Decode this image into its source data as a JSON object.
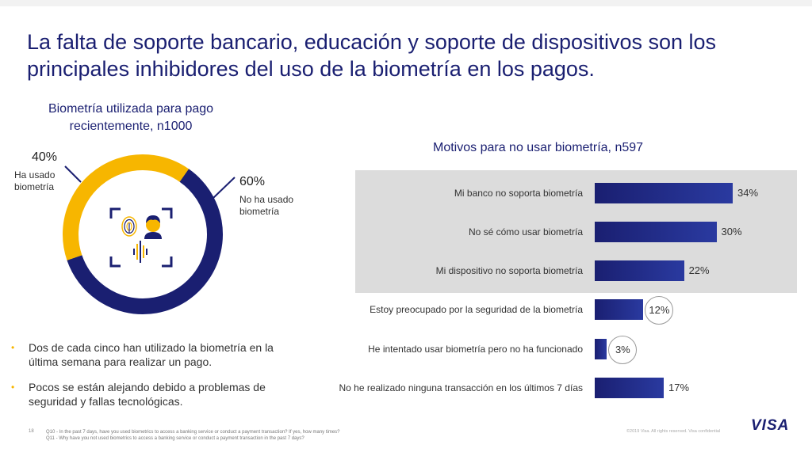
{
  "title": {
    "line1": "La falta de soporte bancario, educación y soporte de dispositivos son los",
    "line2": "principales inhibidores del uso de la biometría en los pagos."
  },
  "donut": {
    "title_line1": "Biometría utilizada para pago",
    "title_line2": "recientemente, n1000",
    "used_pct": "40%",
    "used_label_line1": "Ha usado",
    "used_label_line2": "biometría",
    "notused_pct": "60%",
    "notused_label_line1": "No ha usado",
    "notused_label_line2": "biometría",
    "icon": "biometric-face-fingerprint-icon"
  },
  "bullets": [
    "Dos de cada cinco han utilizado la biometría en la última semana para realizar un pago.",
    "Pocos se están alejando debido a problemas de seguridad y fallas tecnológicas."
  ],
  "bar_chart_title": "Motivos para no usar biometría, n597",
  "chart_data": [
    {
      "type": "pie",
      "title": "Biometría utilizada para pago recientemente, n1000",
      "categories": [
        "Ha usado biometría",
        "No ha usado biometría"
      ],
      "values": [
        40,
        60
      ],
      "colors": [
        "#f7b600",
        "#1a1f71"
      ]
    },
    {
      "type": "bar",
      "orientation": "horizontal",
      "title": "Motivos para no usar biometría, n597",
      "categories": [
        "Mi banco no soporta biometría",
        "No sé cómo usar biometría",
        "Mi dispositivo no soporta biometría",
        "Estoy preocupado por la seguridad de la biometría",
        "He intentado usar biometría pero no ha funcionado",
        "No he realizado ninguna transacción en los últimos 7 días"
      ],
      "values": [
        34,
        30,
        22,
        12,
        3,
        17
      ],
      "value_labels": [
        "34%",
        "30%",
        "22%",
        "12%",
        "3%",
        "17%"
      ],
      "highlighted": [
        true,
        true,
        true,
        false,
        false,
        false
      ],
      "circled": [
        false,
        false,
        false,
        true,
        true,
        false
      ],
      "color": "#1a1f71"
    }
  ],
  "footer": {
    "page": "18",
    "q10": "Q10 - In the past 7 days, have you used biometrics to access a banking service or conduct a payment transaction? If yes, how many times?",
    "q11": "Q11 - Why have you not used biometrics to access a banking service or conduct a payment transaction in the past 7 days?",
    "copyright": "©2019 Visa. All rights reserved. Visa confidential",
    "logo": "VISA"
  }
}
